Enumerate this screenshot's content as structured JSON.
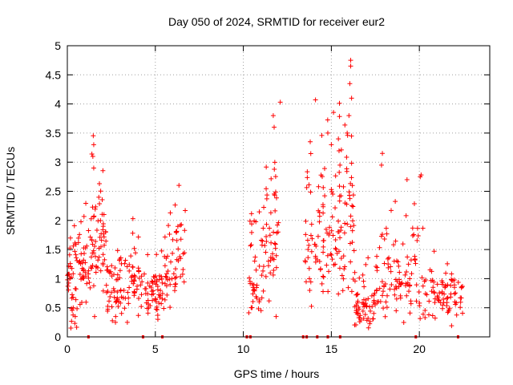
{
  "chart_data": {
    "type": "scatter",
    "title": "Day 050 of 2024, SRMTID for receiver eur2",
    "xlabel": "GPS time / hours",
    "ylabel": "SRMTID / TECUs",
    "xlim": [
      0,
      24
    ],
    "ylim": [
      0,
      5
    ],
    "xticks": [
      0,
      5,
      10,
      15,
      20
    ],
    "xtick_labels": [
      "0",
      "5",
      "10",
      "15",
      "20"
    ],
    "yticks": [
      0,
      0.5,
      1,
      1.5,
      2,
      2.5,
      3,
      3.5,
      4,
      4.5,
      5
    ],
    "ytick_labels": [
      "0",
      "0.5",
      "1",
      "1.5",
      "2",
      "2.5",
      "3",
      "3.5",
      "4",
      "4.5",
      "5"
    ],
    "grid": true,
    "marker": "+",
    "color": "#ff0000",
    "series": [
      {
        "name": "SRMTID",
        "clusters": [
          {
            "t0": 0.0,
            "t1": 0.7,
            "base": 0.9,
            "spread": 0.5,
            "n": 45
          },
          {
            "t0": 0.7,
            "t1": 1.3,
            "base": 1.2,
            "spread": 0.5,
            "n": 35
          },
          {
            "t0": 1.3,
            "t1": 2.2,
            "base": 1.8,
            "spread": 0.8,
            "n": 60
          },
          {
            "t0": 2.2,
            "t1": 3.5,
            "base": 0.7,
            "spread": 0.4,
            "n": 60
          },
          {
            "t0": 3.5,
            "t1": 4.2,
            "base": 1.0,
            "spread": 0.5,
            "n": 35
          },
          {
            "t0": 4.2,
            "t1": 5.5,
            "base": 0.75,
            "spread": 0.35,
            "n": 60
          },
          {
            "t0": 5.5,
            "t1": 6.7,
            "base": 1.2,
            "spread": 0.5,
            "n": 55
          },
          {
            "t0": 10.3,
            "t1": 11.2,
            "base": 0.9,
            "spread": 0.6,
            "n": 45
          },
          {
            "t0": 11.2,
            "t1": 12.0,
            "base": 1.8,
            "spread": 1.0,
            "n": 45
          },
          {
            "t0": 13.5,
            "t1": 14.6,
            "base": 1.6,
            "spread": 0.9,
            "n": 55
          },
          {
            "t0": 14.6,
            "t1": 15.5,
            "base": 2.0,
            "spread": 1.0,
            "n": 45
          },
          {
            "t0": 15.5,
            "t1": 16.3,
            "base": 1.9,
            "spread": 1.1,
            "n": 45
          },
          {
            "t0": 16.3,
            "t1": 17.5,
            "base": 0.6,
            "spread": 0.35,
            "n": 60
          },
          {
            "t0": 17.5,
            "t1": 19.2,
            "base": 1.0,
            "spread": 0.5,
            "n": 65
          },
          {
            "t0": 19.2,
            "t1": 20.4,
            "base": 1.0,
            "spread": 0.6,
            "n": 45
          },
          {
            "t0": 20.4,
            "t1": 22.5,
            "base": 0.7,
            "spread": 0.3,
            "n": 75
          }
        ],
        "highlights": [
          {
            "x": 1.5,
            "y": 3.3
          },
          {
            "x": 1.45,
            "y": 3.1
          },
          {
            "x": 1.5,
            "y": 2.9
          },
          {
            "x": 11.7,
            "y": 3.8
          },
          {
            "x": 11.75,
            "y": 3.6
          },
          {
            "x": 12.1,
            "y": 4.03
          },
          {
            "x": 13.8,
            "y": 3.35
          },
          {
            "x": 14.1,
            "y": 4.07
          },
          {
            "x": 14.8,
            "y": 3.5
          },
          {
            "x": 15.0,
            "y": 3.3
          },
          {
            "x": 15.4,
            "y": 3.4
          },
          {
            "x": 16.1,
            "y": 4.75
          },
          {
            "x": 16.1,
            "y": 4.65
          },
          {
            "x": 16.05,
            "y": 4.35
          },
          {
            "x": 16.15,
            "y": 4.1
          },
          {
            "x": 16.0,
            "y": 3.8
          },
          {
            "x": 15.9,
            "y": 3.5
          },
          {
            "x": 17.9,
            "y": 3.15
          },
          {
            "x": 17.85,
            "y": 2.95
          },
          {
            "x": 19.3,
            "y": 2.7
          },
          {
            "x": 20.1,
            "y": 2.78
          },
          {
            "x": 20.05,
            "y": 2.75
          },
          {
            "x": 1.55,
            "y": 0.35
          },
          {
            "x": 0.45,
            "y": 0.35
          }
        ],
        "zero_marks": [
          1.2,
          4.3,
          5.4,
          10.2,
          10.4,
          13.4,
          13.6,
          14.2,
          14.8,
          15.5,
          19.8,
          22.2
        ]
      }
    ]
  }
}
